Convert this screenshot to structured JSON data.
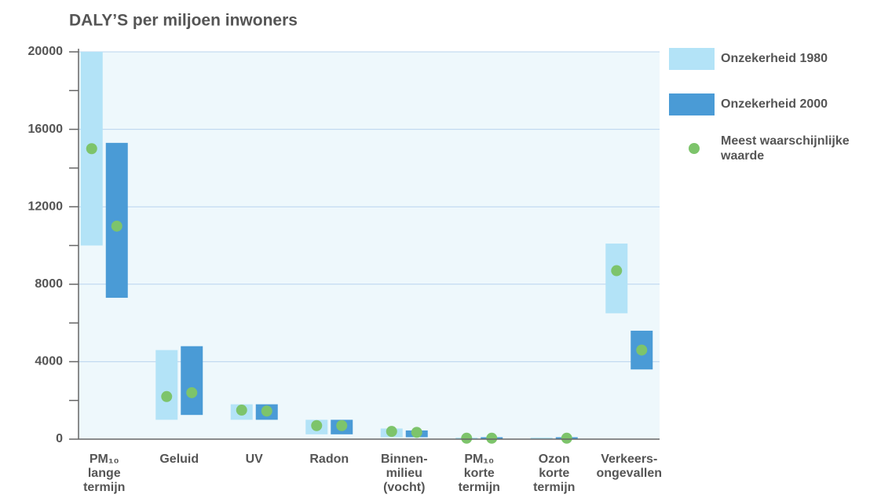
{
  "chart_data": {
    "type": "range-bar",
    "title": "DALY’S per miljoen inwoners",
    "categories": [
      [
        "PM₁₀",
        "lange",
        "termijn"
      ],
      [
        "Geluid"
      ],
      [
        "UV"
      ],
      [
        "Radon"
      ],
      [
        "Binnen-",
        "milieu",
        "(vocht)"
      ],
      [
        "PM₁₀",
        "korte",
        "termijn"
      ],
      [
        "Ozon",
        "korte",
        "termijn"
      ],
      [
        "Verkeers-",
        "ongevallen"
      ]
    ],
    "series": [
      {
        "name": "Onzekerheid 1980",
        "color": "#b3e3f7",
        "low": [
          10000,
          1000,
          1000,
          250,
          100,
          0,
          0,
          6500
        ],
        "high": [
          20000,
          4600,
          1800,
          1000,
          550,
          80,
          80,
          10100
        ],
        "best": [
          15000,
          2200,
          1500,
          700,
          400,
          50,
          null,
          8700
        ]
      },
      {
        "name": "Onzekerheid 2000",
        "color": "#4a9bd6",
        "low": [
          7300,
          1250,
          1000,
          250,
          100,
          0,
          0,
          3600
        ],
        "high": [
          15300,
          4800,
          1800,
          1000,
          450,
          100,
          100,
          5600
        ],
        "best": [
          11000,
          2400,
          1450,
          700,
          350,
          50,
          50,
          4600
        ]
      }
    ],
    "marker": {
      "name": "Meest waarschijnlijke waarde",
      "color": "#7dc46b"
    },
    "ylim": [
      0,
      20000
    ],
    "yticks": [
      0,
      4000,
      8000,
      12000,
      16000,
      20000
    ],
    "minor_yticks": [
      2000,
      6000,
      10000,
      14000,
      18000
    ],
    "grid": true,
    "legend": "right"
  }
}
